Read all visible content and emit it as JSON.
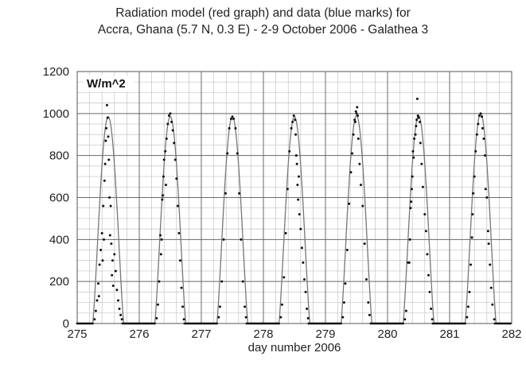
{
  "chart_data": {
    "type": "line",
    "title_lines": [
      "Radiation model (red graph) and data (blue marks) for",
      "Accra, Ghana (5.7 N, 0.3 E) - 2-9 October 2006 - Galathea 3"
    ],
    "xlabel": "day number 2006",
    "unit_label": "W/m^2",
    "xlim": [
      275,
      282
    ],
    "ylim": [
      0,
      1200
    ],
    "x_ticks": [
      275,
      276,
      277,
      278,
      279,
      280,
      281,
      282
    ],
    "y_ticks": [
      0,
      200,
      400,
      600,
      800,
      1000,
      1200
    ],
    "grid": true,
    "series": [
      {
        "kind": "model-curve",
        "day_peaks": [
          {
            "day": 275,
            "peak": 985
          },
          {
            "day": 276,
            "peak": 985
          },
          {
            "day": 277,
            "peak": 985
          },
          {
            "day": 278,
            "peak": 985
          },
          {
            "day": 279,
            "peak": 990
          },
          {
            "day": 280,
            "peak": 990
          },
          {
            "day": 281,
            "peak": 1000
          }
        ],
        "peak_fraction_of_day": 0.5,
        "half_width_days": 0.25
      },
      {
        "kind": "measured-points",
        "points": [
          [
            275.28,
            20
          ],
          [
            275.3,
            60
          ],
          [
            275.32,
            110
          ],
          [
            275.34,
            190
          ],
          [
            275.35,
            130
          ],
          [
            275.36,
            280
          ],
          [
            275.38,
            350
          ],
          [
            275.4,
            430
          ],
          [
            275.41,
            300
          ],
          [
            275.42,
            560
          ],
          [
            275.43,
            400
          ],
          [
            275.44,
            680
          ],
          [
            275.45,
            760
          ],
          [
            275.46,
            870
          ],
          [
            275.47,
            930
          ],
          [
            275.48,
            1040
          ],
          [
            275.49,
            980
          ],
          [
            275.5,
            890
          ],
          [
            275.51,
            780
          ],
          [
            275.52,
            600
          ],
          [
            275.53,
            420
          ],
          [
            275.54,
            560
          ],
          [
            275.55,
            380
          ],
          [
            275.56,
            230
          ],
          [
            275.57,
            300
          ],
          [
            275.58,
            180
          ],
          [
            275.6,
            330
          ],
          [
            275.62,
            250
          ],
          [
            275.64,
            160
          ],
          [
            275.66,
            110
          ],
          [
            275.68,
            70
          ],
          [
            275.7,
            40
          ],
          [
            275.72,
            20
          ],
          [
            276.28,
            25
          ],
          [
            276.3,
            90
          ],
          [
            276.32,
            200
          ],
          [
            276.34,
            420
          ],
          [
            276.35,
            330
          ],
          [
            276.36,
            400
          ],
          [
            276.37,
            590
          ],
          [
            276.38,
            610
          ],
          [
            276.39,
            700
          ],
          [
            276.4,
            780
          ],
          [
            276.42,
            820
          ],
          [
            276.43,
            660
          ],
          [
            276.44,
            880
          ],
          [
            276.46,
            950
          ],
          [
            276.48,
            990
          ],
          [
            276.5,
            1000
          ],
          [
            276.52,
            960
          ],
          [
            276.54,
            920
          ],
          [
            276.56,
            860
          ],
          [
            276.58,
            780
          ],
          [
            276.6,
            690
          ],
          [
            276.62,
            560
          ],
          [
            276.64,
            430
          ],
          [
            276.66,
            300
          ],
          [
            276.68,
            170
          ],
          [
            276.7,
            80
          ],
          [
            276.72,
            20
          ],
          [
            277.28,
            30
          ],
          [
            277.3,
            80
          ],
          [
            277.33,
            200
          ],
          [
            277.36,
            400
          ],
          [
            277.39,
            620
          ],
          [
            277.42,
            810
          ],
          [
            277.45,
            930
          ],
          [
            277.48,
            975
          ],
          [
            277.5,
            985
          ],
          [
            277.52,
            975
          ],
          [
            277.55,
            930
          ],
          [
            277.58,
            810
          ],
          [
            277.61,
            620
          ],
          [
            277.64,
            400
          ],
          [
            277.67,
            200
          ],
          [
            277.7,
            80
          ],
          [
            277.72,
            30
          ],
          [
            278.28,
            30
          ],
          [
            278.3,
            90
          ],
          [
            278.33,
            220
          ],
          [
            278.36,
            430
          ],
          [
            278.39,
            640
          ],
          [
            278.42,
            820
          ],
          [
            278.45,
            930
          ],
          [
            278.47,
            960
          ],
          [
            278.49,
            990
          ],
          [
            278.51,
            970
          ],
          [
            278.52,
            900
          ],
          [
            278.53,
            800
          ],
          [
            278.54,
            760
          ],
          [
            278.55,
            660
          ],
          [
            278.56,
            590
          ],
          [
            278.57,
            700
          ],
          [
            278.58,
            520
          ],
          [
            278.6,
            450
          ],
          [
            278.62,
            360
          ],
          [
            278.64,
            290
          ],
          [
            278.66,
            210
          ],
          [
            278.68,
            150
          ],
          [
            278.7,
            70
          ],
          [
            278.72,
            25
          ],
          [
            279.28,
            30
          ],
          [
            279.3,
            100
          ],
          [
            279.32,
            190
          ],
          [
            279.35,
            350
          ],
          [
            279.38,
            570
          ],
          [
            279.41,
            720
          ],
          [
            279.43,
            810
          ],
          [
            279.45,
            900
          ],
          [
            279.47,
            970
          ],
          [
            279.48,
            960
          ],
          [
            279.49,
            1010
          ],
          [
            279.5,
            1000
          ],
          [
            279.51,
            1030
          ],
          [
            279.52,
            990
          ],
          [
            279.53,
            880
          ],
          [
            279.55,
            760
          ],
          [
            279.57,
            660
          ],
          [
            279.6,
            560
          ],
          [
            279.63,
            380
          ],
          [
            279.66,
            210
          ],
          [
            279.69,
            100
          ],
          [
            279.71,
            40
          ],
          [
            280.28,
            20
          ],
          [
            280.3,
            60
          ],
          [
            280.33,
            290
          ],
          [
            280.35,
            290
          ],
          [
            280.36,
            400
          ],
          [
            280.37,
            550
          ],
          [
            280.38,
            580
          ],
          [
            280.39,
            640
          ],
          [
            280.4,
            700
          ],
          [
            280.41,
            820
          ],
          [
            280.42,
            790
          ],
          [
            280.43,
            880
          ],
          [
            280.45,
            900
          ],
          [
            280.46,
            940
          ],
          [
            280.47,
            970
          ],
          [
            280.48,
            1070
          ],
          [
            280.49,
            990
          ],
          [
            280.5,
            980
          ],
          [
            280.52,
            960
          ],
          [
            280.53,
            860
          ],
          [
            280.55,
            760
          ],
          [
            280.57,
            650
          ],
          [
            280.6,
            520
          ],
          [
            280.62,
            440
          ],
          [
            280.64,
            330
          ],
          [
            280.66,
            230
          ],
          [
            280.68,
            150
          ],
          [
            280.7,
            70
          ],
          [
            280.72,
            20
          ],
          [
            281.28,
            30
          ],
          [
            281.3,
            80
          ],
          [
            281.32,
            150
          ],
          [
            281.34,
            280
          ],
          [
            281.36,
            410
          ],
          [
            281.37,
            520
          ],
          [
            281.38,
            620
          ],
          [
            281.4,
            700
          ],
          [
            281.42,
            820
          ],
          [
            281.44,
            900
          ],
          [
            281.46,
            950
          ],
          [
            281.48,
            990
          ],
          [
            281.5,
            1000
          ],
          [
            281.52,
            985
          ],
          [
            281.53,
            930
          ],
          [
            281.55,
            880
          ],
          [
            281.57,
            800
          ],
          [
            281.58,
            640
          ],
          [
            281.6,
            600
          ],
          [
            281.62,
            440
          ],
          [
            281.63,
            380
          ],
          [
            281.65,
            280
          ],
          [
            281.67,
            170
          ],
          [
            281.69,
            90
          ],
          [
            281.72,
            20
          ]
        ],
        "night_value": 0
      }
    ]
  }
}
